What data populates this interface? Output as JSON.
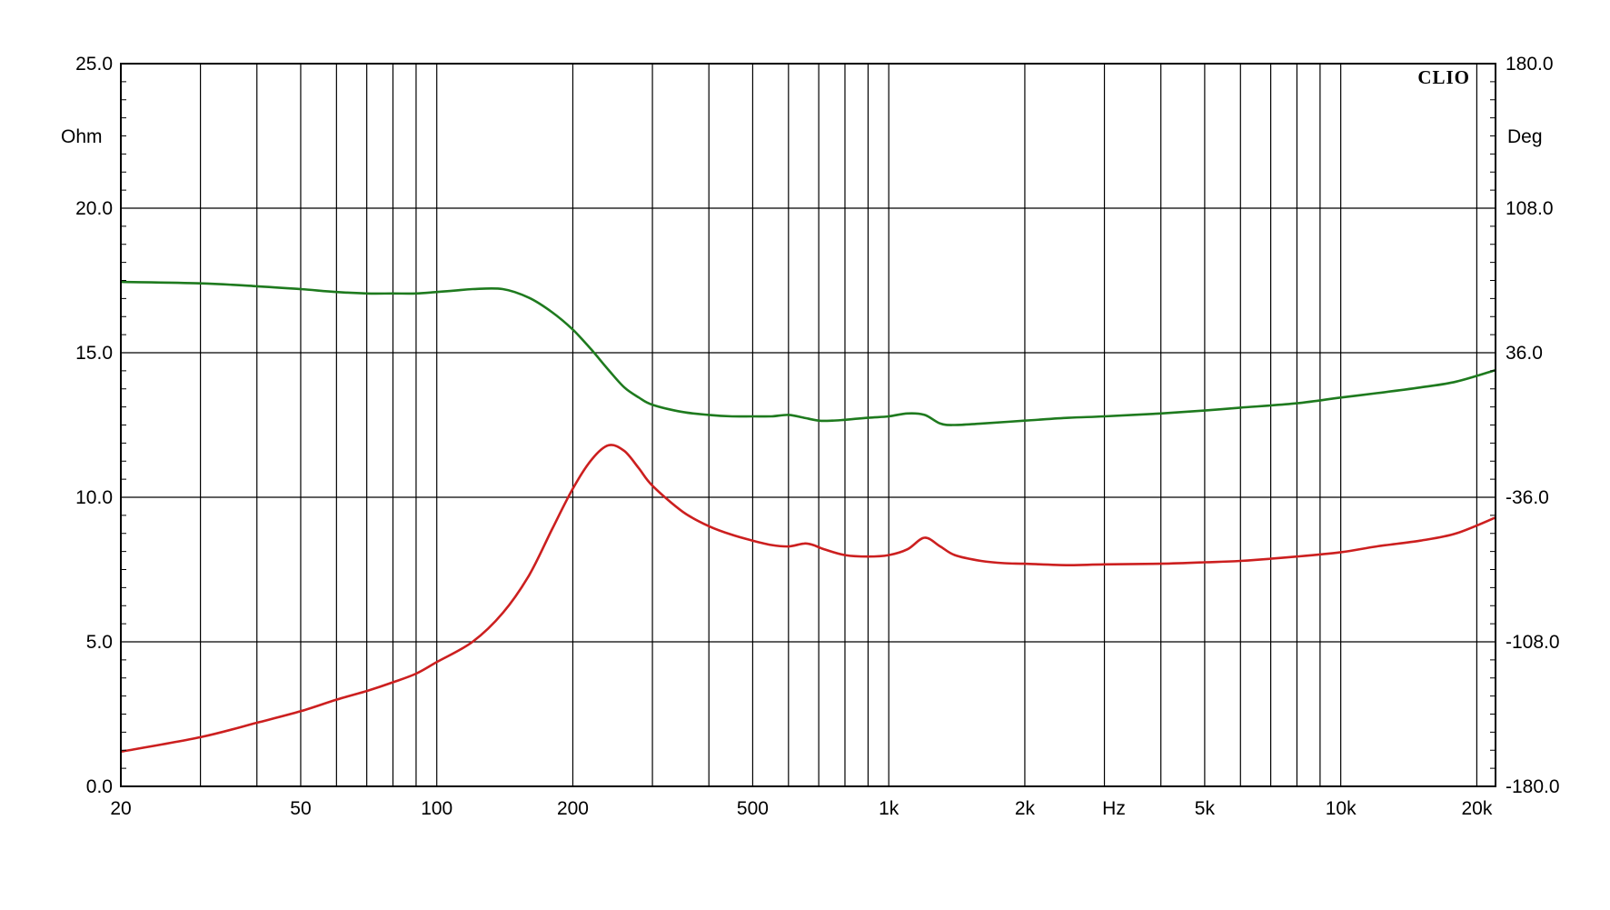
{
  "chart_data": {
    "type": "line",
    "brand": "CLIO",
    "x_scale": "log",
    "xlim": [
      20,
      22000
    ],
    "x_unit_label": "Hz",
    "x_ticks": [
      {
        "value": 20,
        "label": "20"
      },
      {
        "value": 50,
        "label": "50"
      },
      {
        "value": 100,
        "label": "100"
      },
      {
        "value": 200,
        "label": "200"
      },
      {
        "value": 500,
        "label": "500"
      },
      {
        "value": 1000,
        "label": "1k"
      },
      {
        "value": 2000,
        "label": "2k"
      },
      {
        "value": 5000,
        "label": "5k"
      },
      {
        "value": 10000,
        "label": "10k"
      },
      {
        "value": 20000,
        "label": "20k"
      }
    ],
    "x_minor_gridlines": [
      30,
      40,
      50,
      60,
      70,
      80,
      90,
      100,
      200,
      300,
      400,
      500,
      600,
      700,
      800,
      900,
      1000,
      2000,
      3000,
      4000,
      5000,
      6000,
      7000,
      8000,
      9000,
      10000,
      20000
    ],
    "y_left": {
      "unit": "Ohm",
      "lim": [
        0,
        25
      ],
      "ticks": [
        "0.0",
        "5.0",
        "10.0",
        "15.0",
        "20.0",
        "25.0"
      ]
    },
    "y_right": {
      "unit": "Deg",
      "lim": [
        -180,
        180
      ],
      "ticks": [
        "-180.0",
        "-108.0",
        "-36.0",
        "36.0",
        "108.0",
        "180.0"
      ]
    },
    "grid": true,
    "series": [
      {
        "axis": "left",
        "color": "#cc1f1f",
        "x": [
          20,
          30,
          40,
          50,
          60,
          70,
          80,
          90,
          100,
          120,
          140,
          160,
          180,
          200,
          220,
          240,
          260,
          280,
          300,
          350,
          400,
          450,
          500,
          550,
          600,
          650,
          680,
          720,
          800,
          900,
          1000,
          1100,
          1200,
          1300,
          1400,
          1600,
          1800,
          2000,
          2500,
          3000,
          4000,
          5000,
          6000,
          8000,
          10000,
          12000,
          15000,
          18000,
          22000
        ],
        "values": [
          1.2,
          1.7,
          2.2,
          2.6,
          3.0,
          3.3,
          3.6,
          3.9,
          4.3,
          5.0,
          6.0,
          7.3,
          8.9,
          10.3,
          11.3,
          11.8,
          11.6,
          11.0,
          10.4,
          9.5,
          9.0,
          8.7,
          8.5,
          8.35,
          8.3,
          8.4,
          8.35,
          8.2,
          8.0,
          7.95,
          8.0,
          8.2,
          8.6,
          8.3,
          8.0,
          7.8,
          7.72,
          7.7,
          7.65,
          7.68,
          7.7,
          7.75,
          7.8,
          7.95,
          8.1,
          8.3,
          8.5,
          8.75,
          9.3
        ]
      },
      {
        "axis": "left",
        "color": "#1e7a1e",
        "x": [
          20,
          30,
          40,
          50,
          60,
          70,
          80,
          90,
          100,
          110,
          120,
          140,
          160,
          180,
          200,
          220,
          240,
          260,
          280,
          300,
          350,
          400,
          450,
          500,
          550,
          600,
          650,
          700,
          750,
          800,
          900,
          1000,
          1100,
          1200,
          1300,
          1400,
          1600,
          2000,
          2500,
          3000,
          4000,
          5000,
          6000,
          8000,
          10000,
          12000,
          15000,
          18000,
          22000
        ],
        "values": [
          17.45,
          17.4,
          17.3,
          17.2,
          17.1,
          17.05,
          17.05,
          17.05,
          17.1,
          17.15,
          17.2,
          17.2,
          16.9,
          16.4,
          15.8,
          15.1,
          14.4,
          13.8,
          13.45,
          13.2,
          12.95,
          12.85,
          12.8,
          12.8,
          12.8,
          12.85,
          12.75,
          12.65,
          12.65,
          12.68,
          12.75,
          12.8,
          12.9,
          12.85,
          12.55,
          12.5,
          12.55,
          12.65,
          12.75,
          12.8,
          12.9,
          13.0,
          13.1,
          13.25,
          13.45,
          13.6,
          13.8,
          14.0,
          14.4
        ]
      }
    ]
  }
}
